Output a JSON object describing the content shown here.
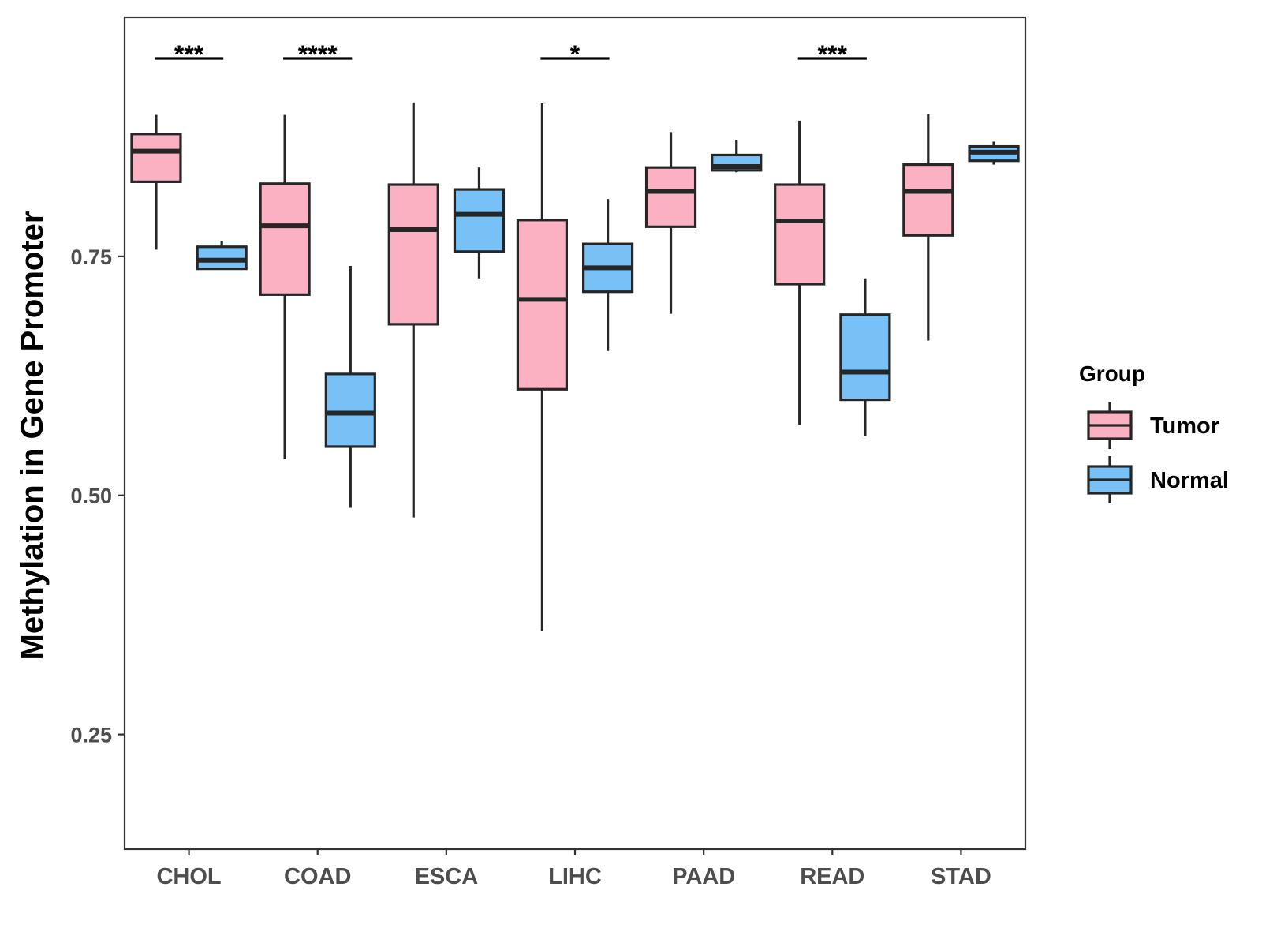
{
  "chart_data": {
    "type": "boxplot",
    "title": "",
    "xlabel": "",
    "ylabel": "Methylation in Gene Promoter",
    "ylim": [
      0.13,
      1.0
    ],
    "yticks": [
      0.25,
      0.5,
      0.75
    ],
    "ytick_labels": [
      "0.25",
      "0.50",
      "0.75"
    ],
    "categories": [
      "CHOL",
      "COAD",
      "ESCA",
      "LIHC",
      "PAAD",
      "READ",
      "STAD"
    ],
    "legend": {
      "title": "Group",
      "position": "right"
    },
    "series": [
      {
        "name": "Tumor",
        "color": "#FCB1C3",
        "boxes": [
          {
            "category": "CHOL",
            "whisker_low": 0.757,
            "q1": 0.828,
            "median": 0.86,
            "q3": 0.878,
            "whisker_high": 0.898
          },
          {
            "category": "COAD",
            "whisker_low": 0.538,
            "q1": 0.71,
            "median": 0.782,
            "q3": 0.826,
            "whisker_high": 0.898
          },
          {
            "category": "ESCA",
            "whisker_low": 0.477,
            "q1": 0.679,
            "median": 0.778,
            "q3": 0.825,
            "whisker_high": 0.911
          },
          {
            "category": "LIHC",
            "whisker_low": 0.358,
            "q1": 0.611,
            "median": 0.705,
            "q3": 0.788,
            "whisker_high": 0.91
          },
          {
            "category": "PAAD",
            "whisker_low": 0.69,
            "q1": 0.781,
            "median": 0.818,
            "q3": 0.843,
            "whisker_high": 0.88
          },
          {
            "category": "READ",
            "whisker_low": 0.574,
            "q1": 0.721,
            "median": 0.787,
            "q3": 0.825,
            "whisker_high": 0.892
          },
          {
            "category": "STAD",
            "whisker_low": 0.662,
            "q1": 0.772,
            "median": 0.818,
            "q3": 0.846,
            "whisker_high": 0.899
          }
        ]
      },
      {
        "name": "Normal",
        "color": "#78C1F7",
        "boxes": [
          {
            "category": "CHOL",
            "whisker_low": 0.737,
            "q1": 0.737,
            "median": 0.746,
            "q3": 0.76,
            "whisker_high": 0.766
          },
          {
            "category": "COAD",
            "whisker_low": 0.487,
            "q1": 0.551,
            "median": 0.586,
            "q3": 0.627,
            "whisker_high": 0.74
          },
          {
            "category": "ESCA",
            "whisker_low": 0.727,
            "q1": 0.755,
            "median": 0.794,
            "q3": 0.82,
            "whisker_high": 0.843
          },
          {
            "category": "LIHC",
            "whisker_low": 0.651,
            "q1": 0.713,
            "median": 0.738,
            "q3": 0.763,
            "whisker_high": 0.81
          },
          {
            "category": "PAAD",
            "whisker_low": 0.838,
            "q1": 0.84,
            "median": 0.844,
            "q3": 0.856,
            "whisker_high": 0.872
          },
          {
            "category": "READ",
            "whisker_low": 0.562,
            "q1": 0.6,
            "median": 0.629,
            "q3": 0.689,
            "whisker_high": 0.727
          },
          {
            "category": "STAD",
            "whisker_low": 0.846,
            "q1": 0.85,
            "median": 0.859,
            "q3": 0.865,
            "whisker_high": 0.87
          }
        ]
      }
    ],
    "annotations": [
      {
        "category": "CHOL",
        "label": "***"
      },
      {
        "category": "COAD",
        "label": "****"
      },
      {
        "category": "LIHC",
        "label": "*"
      },
      {
        "category": "READ",
        "label": "***"
      }
    ]
  }
}
